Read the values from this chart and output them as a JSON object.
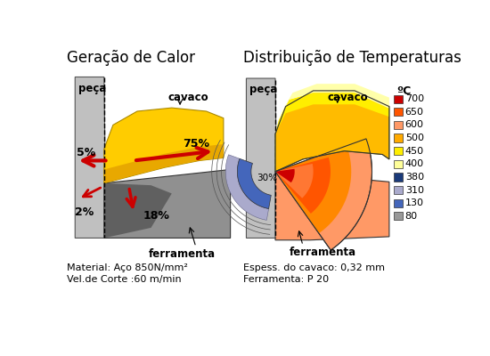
{
  "title_left": "Geração de Calor",
  "title_right": "Distribuição de Temperaturas",
  "subtitle_left1": "Material: Aço 850N/mm²",
  "subtitle_left2": "Vel.de Corte :60 m/min",
  "subtitle_right1": "Espess. do cavaco: 0,32 mm",
  "subtitle_right2": "Ferramenta: P 20",
  "label_peca": "peça",
  "label_cavaco": "cavaco",
  "label_ferramenta": "ferramenta",
  "pct_5": "5%",
  "pct_75": "75%",
  "pct_2": "2%",
  "pct_18": "18%",
  "pct_30": "30%",
  "legend_title": "ºC",
  "legend_items": [
    {
      "label": "700",
      "color": "#cc0000"
    },
    {
      "label": "650",
      "color": "#ff5500"
    },
    {
      "label": "600",
      "color": "#ff9966"
    },
    {
      "label": "500",
      "color": "#ffaa00"
    },
    {
      "label": "450",
      "color": "#ffee00"
    },
    {
      "label": "400",
      "color": "#ffff99"
    },
    {
      "label": "380",
      "color": "#1a3a7a"
    },
    {
      "label": "310",
      "color": "#aaaacc"
    },
    {
      "label": "130",
      "color": "#4466bb"
    },
    {
      "label": "80",
      "color": "#999999"
    }
  ],
  "bg_color": "#ffffff",
  "piece_color": "#c8c8c8",
  "arrow_color": "#cc0000",
  "text_color": "#000000"
}
